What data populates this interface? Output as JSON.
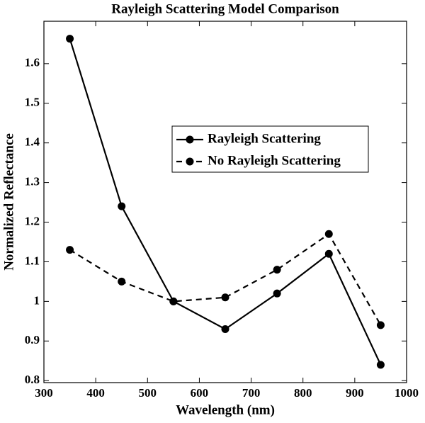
{
  "chart_data": {
    "type": "line",
    "title": "Rayleigh Scattering Model Comparison",
    "x_label": "Wavelength (nm)",
    "y_label": "Normalized Reflectance",
    "x": [
      350,
      450,
      550,
      650,
      750,
      850,
      950
    ],
    "series": [
      {
        "name": "Rayleigh Scattering",
        "color": "#000000",
        "dash": "solid",
        "values": [
          1.663,
          1.24,
          1.0,
          0.93,
          1.02,
          1.12,
          0.84
        ]
      },
      {
        "name": "No Rayleigh Scattering",
        "color": "#000000",
        "dash": "dashed",
        "values": [
          1.13,
          1.05,
          1.0,
          1.01,
          1.08,
          1.17,
          0.94
        ]
      }
    ],
    "xlim": [
      300,
      1000
    ],
    "xticks": [
      300,
      400,
      500,
      600,
      700,
      800,
      900,
      1000
    ],
    "ylim": [
      0.795,
      1.707
    ],
    "yticks": [
      0.8,
      0.9,
      1,
      1.1,
      1.2,
      1.3,
      1.4,
      1.5,
      1.6
    ],
    "grid": false
  }
}
